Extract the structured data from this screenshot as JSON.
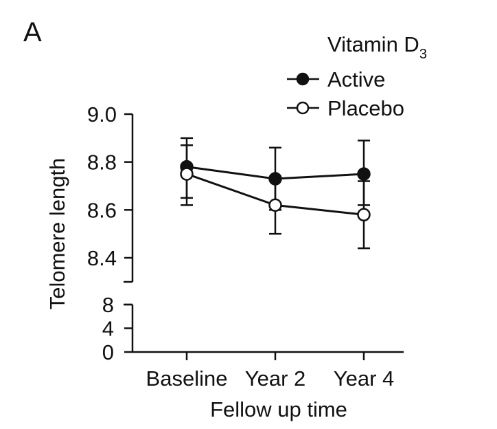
{
  "panel_label": "A",
  "chart_data": {
    "type": "line",
    "title": "",
    "xlabel": "Fellow up time",
    "ylabel": "Telomere length",
    "categories": [
      "Baseline",
      "Year 2",
      "Year 4"
    ],
    "legend_title": "Vitamin D",
    "legend_title_subscript": "3",
    "legend_position": "top-right",
    "y_axis": {
      "lower_segment": {
        "range": [
          0,
          8
        ],
        "ticks": [
          "0",
          "4",
          "8"
        ],
        "tick_values": [
          0,
          4,
          8
        ]
      },
      "upper_segment": {
        "range": [
          8.3,
          9.0
        ],
        "ticks": [
          "8.4",
          "8.6",
          "8.8",
          "9.0"
        ],
        "tick_values": [
          8.4,
          8.6,
          8.8,
          9.0
        ]
      },
      "broken": true
    },
    "series": [
      {
        "name": "Active",
        "marker": "filled-circle",
        "color": "#111111",
        "values": [
          8.78,
          8.73,
          8.75
        ],
        "err_low": [
          8.65,
          8.6,
          8.62
        ],
        "err_high": [
          8.9,
          8.86,
          8.89
        ]
      },
      {
        "name": "Placebo",
        "marker": "open-circle",
        "color": "#111111",
        "values": [
          8.75,
          8.62,
          8.58
        ],
        "err_low": [
          8.62,
          8.5,
          8.44
        ],
        "err_high": [
          8.87,
          8.74,
          8.72
        ]
      }
    ]
  }
}
